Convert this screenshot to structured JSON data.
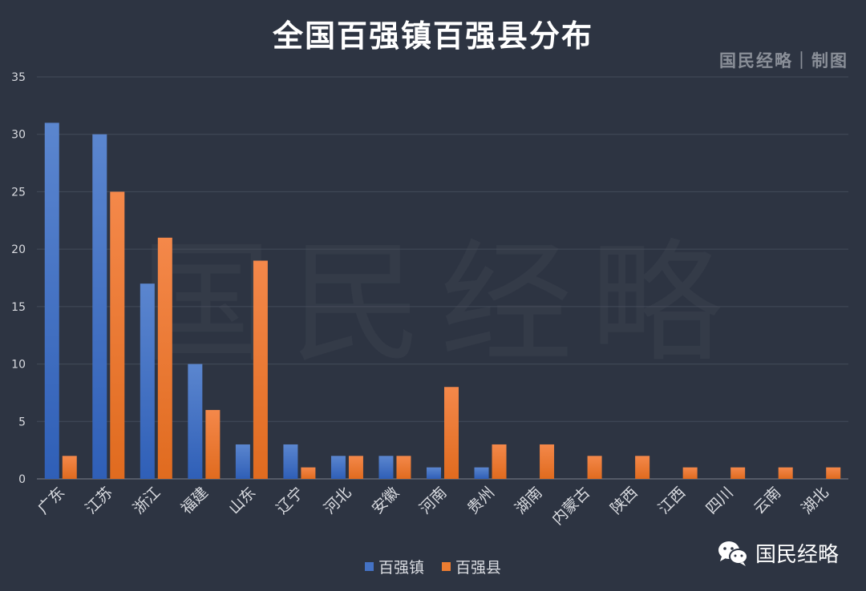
{
  "header": {
    "title": "全国百强镇百强县分布",
    "credit": "国民经略｜制图",
    "watermark": "国民经略"
  },
  "brand": {
    "label": "国民经略",
    "icon": "wechat-icon"
  },
  "colors": {
    "background": "#2d3442",
    "towns": "#4472c4",
    "counties": "#ed7d31",
    "grid": "#434b5a",
    "axis_text": "#d9dbe0"
  },
  "chart_data": {
    "type": "bar",
    "title": "全国百强镇百强县分布",
    "xlabel": "",
    "ylabel": "",
    "categories": [
      "广东",
      "江苏",
      "浙江",
      "福建",
      "山东",
      "辽宁",
      "河北",
      "安徽",
      "河南",
      "贵州",
      "湖南",
      "内蒙古",
      "陕西",
      "江西",
      "四川",
      "云南",
      "湖北"
    ],
    "series": [
      {
        "name": "百强镇",
        "values": [
          31,
          30,
          17,
          10,
          3,
          3,
          2,
          2,
          1,
          1,
          0,
          0,
          0,
          0,
          0,
          0,
          0
        ]
      },
      {
        "name": "百强县",
        "values": [
          2,
          25,
          21,
          6,
          19,
          1,
          2,
          2,
          8,
          3,
          3,
          2,
          2,
          1,
          1,
          1,
          1
        ]
      }
    ],
    "ylim": [
      0,
      35
    ],
    "yticks": [
      0,
      5,
      10,
      15,
      20,
      25,
      30,
      35
    ],
    "grid": true,
    "legend_position": "bottom"
  }
}
